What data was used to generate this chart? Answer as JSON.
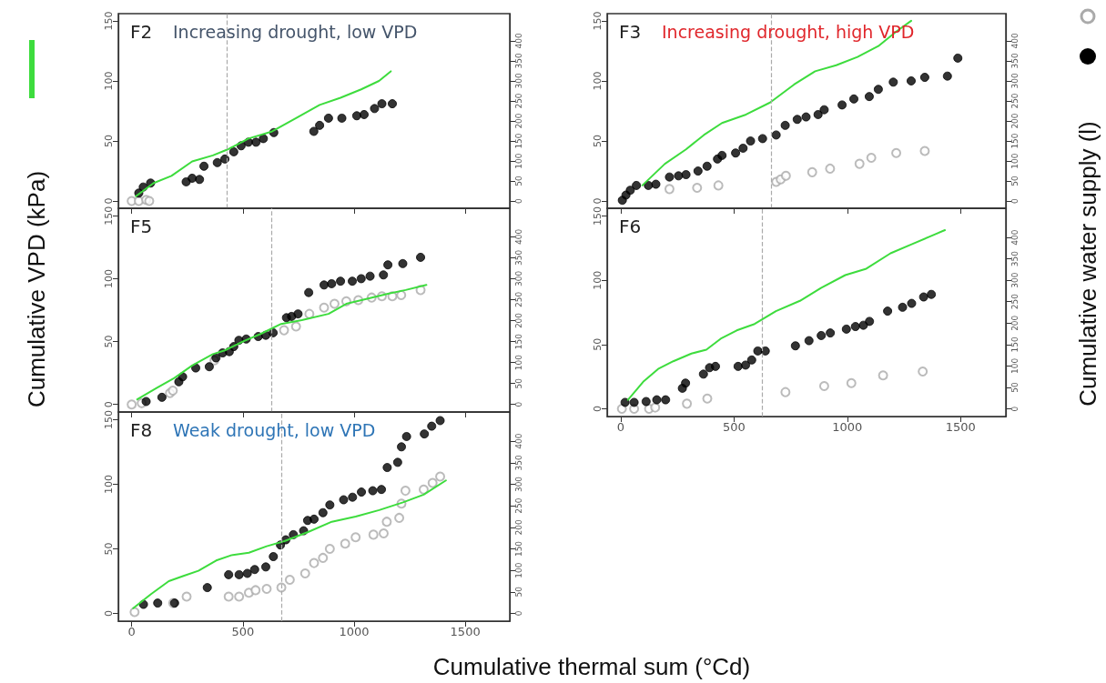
{
  "chart_data": [
    {
      "type": "scatter",
      "title": "F2",
      "subtitle": "Increasing drought, low VPD",
      "xlim": [
        -60,
        1700
      ],
      "xticks": [
        0,
        500,
        1000,
        1500
      ],
      "ylim": [
        -6,
        156
      ],
      "yticks": [
        0,
        50,
        100,
        150
      ],
      "y2lim": [
        -18,
        468
      ],
      "y2ticks": [
        0,
        50,
        100,
        150,
        200,
        250,
        300,
        350,
        400
      ],
      "tick_labels": "y",
      "ref_lines": [
        {
          "axis": "x",
          "value": 430,
          "color": "#aaaaaa",
          "line_style": "dashed"
        }
      ],
      "series": [
        {
          "type": "line",
          "color": "#3ddc3d",
          "x": [
            19,
            99,
            179,
            272,
            365,
            432,
            525,
            632,
            739,
            845,
            939,
            1032,
            1112,
            1165
          ],
          "values": [
            4,
            15,
            21,
            33,
            38,
            43,
            52,
            58,
            69,
            80,
            86,
            93,
            100,
            108
          ]
        },
        {
          "type": "scatter",
          "axis": "y2",
          "marker": "circle",
          "color": "#000000",
          "x": [
            32,
            52,
            85,
            245,
            272,
            305,
            325,
            385,
            419,
            459,
            492,
            525,
            559,
            592,
            639,
            819,
            845,
            885,
            945,
            1012,
            1045,
            1092,
            1125,
            1172
          ],
          "values": [
            20,
            35,
            45,
            48,
            57,
            54,
            87,
            96,
            105,
            123,
            138,
            147,
            147,
            156,
            171,
            174,
            189,
            207,
            207,
            213,
            216,
            231,
            243,
            243
          ]
        },
        {
          "type": "scatter",
          "axis": "y2",
          "marker": "circle-open",
          "color": "#aaaaaa",
          "x": [
            0,
            32,
            65,
            79
          ],
          "values": [
            0,
            0,
            3,
            0
          ]
        }
      ]
    },
    {
      "type": "scatter",
      "title": "F3",
      "subtitle": "Increasing drought, high VPD",
      "y2label": "Cumulative water supply (l)",
      "xlim": [
        -60,
        1700
      ],
      "xticks": [
        0,
        500,
        1000,
        1500
      ],
      "ylim": [
        -6,
        156
      ],
      "yticks": [
        0,
        50,
        100,
        150
      ],
      "y2lim": [
        -18,
        468
      ],
      "y2ticks": [
        0,
        50,
        100,
        150,
        200,
        250,
        300,
        350,
        400
      ],
      "tick_labels": "y",
      "ref_lines": [
        {
          "axis": "x",
          "value": 665,
          "color": "#aaaaaa",
          "line_style": "dashed"
        }
      ],
      "series": [
        {
          "type": "line",
          "color": "#3ddc3d",
          "x": [
            95,
            195,
            288,
            367,
            447,
            553,
            659,
            765,
            858,
            951,
            1045,
            1137,
            1216,
            1282
          ],
          "values": [
            13,
            31,
            43,
            55,
            65,
            72,
            82,
            97,
            108,
            113,
            120,
            129,
            141,
            150
          ]
        },
        {
          "type": "scatter",
          "axis": "y2",
          "marker": "circle",
          "color": "#000000",
          "x": [
            7,
            23,
            42,
            69,
            122,
            155,
            215,
            255,
            288,
            341,
            381,
            427,
            447,
            507,
            540,
            573,
            626,
            686,
            726,
            779,
            818,
            871,
            898,
            977,
            1029,
            1097,
            1137,
            1203,
            1282,
            1342,
            1442,
            1488
          ],
          "values": [
            2,
            15,
            27,
            39,
            39,
            42,
            60,
            63,
            66,
            75,
            87,
            105,
            114,
            120,
            132,
            150,
            156,
            165,
            189,
            204,
            210,
            216,
            228,
            240,
            255,
            261,
            279,
            297,
            300,
            309,
            312,
            357
          ]
        },
        {
          "type": "scatter",
          "axis": "y2",
          "marker": "circle-open",
          "color": "#aaaaaa",
          "x": [
            215,
            337,
            431,
            686,
            706,
            729,
            845,
            924,
            1054,
            1106,
            1216,
            1342
          ],
          "values": [
            30,
            33,
            39,
            48,
            54,
            63,
            72,
            81,
            93,
            108,
            120,
            125
          ]
        }
      ]
    },
    {
      "type": "scatter",
      "title": "F5",
      "ylabel": "Cumulative VPD (kPa)",
      "xlim": [
        -60,
        1700
      ],
      "xticks": [
        0,
        500,
        1000,
        1500
      ],
      "ylim": [
        -6,
        156
      ],
      "yticks": [
        0,
        50,
        100,
        150
      ],
      "y2lim": [
        -18,
        468
      ],
      "y2ticks": [
        0,
        50,
        100,
        150,
        200,
        250,
        300,
        350,
        400
      ],
      "tick_labels": "y",
      "ref_lines": [
        {
          "axis": "x",
          "value": 630,
          "color": "#aaaaaa",
          "line_style": "dashed"
        }
      ],
      "series": [
        {
          "type": "line",
          "color": "#3ddc3d",
          "x": [
            25,
            112,
            192,
            272,
            365,
            419,
            499,
            579,
            672,
            765,
            885,
            965,
            1059,
            1152,
            1232,
            1325
          ],
          "values": [
            4,
            13,
            21,
            31,
            40,
            43,
            50,
            56,
            64,
            67,
            72,
            80,
            84,
            88,
            91,
            95
          ]
        },
        {
          "type": "scatter",
          "axis": "y2",
          "marker": "circle",
          "color": "#000000",
          "x": [
            65,
            136,
            212,
            229,
            288,
            349,
            379,
            409,
            439,
            459,
            482,
            515,
            569,
            603,
            636,
            696,
            719,
            748,
            796,
            865,
            899,
            939,
            992,
            1032,
            1072,
            1132,
            1152,
            1219,
            1299
          ],
          "values": [
            7,
            17,
            54,
            66,
            87,
            90,
            111,
            123,
            126,
            138,
            153,
            156,
            162,
            165,
            171,
            207,
            210,
            216,
            267,
            285,
            288,
            294,
            294,
            300,
            306,
            309,
            333,
            336,
            351
          ]
        },
        {
          "type": "scatter",
          "axis": "y2",
          "marker": "circle-open",
          "color": "#aaaaaa",
          "x": [
            0,
            45,
            172,
            185,
            372,
            685,
            739,
            799,
            865,
            912,
            965,
            1019,
            1079,
            1125,
            1172,
            1212,
            1299
          ],
          "values": [
            0,
            3,
            27,
            33,
            105,
            177,
            186,
            216,
            231,
            240,
            246,
            249,
            255,
            258,
            258,
            261,
            273
          ]
        }
      ]
    },
    {
      "type": "scatter",
      "title": "F6",
      "xlim": [
        -60,
        1700
      ],
      "xticks": [
        0,
        500,
        1000,
        1500
      ],
      "ylim": [
        -6,
        156
      ],
      "yticks": [
        0,
        50,
        100,
        150
      ],
      "y2lim": [
        -18,
        468
      ],
      "y2ticks": [
        0,
        50,
        100,
        150,
        200,
        250,
        300,
        350,
        400
      ],
      "ref_lines": [
        {
          "axis": "x",
          "value": 625,
          "color": "#aaaaaa",
          "line_style": "dashed"
        }
      ],
      "series": [
        {
          "type": "line",
          "color": "#3ddc3d",
          "x": [
            32,
            99,
            165,
            232,
            312,
            378,
            445,
            512,
            591,
            685,
            791,
            884,
            991,
            1084,
            1191,
            1284,
            1364,
            1431
          ],
          "values": [
            7,
            21,
            31,
            37,
            43,
            46,
            55,
            61,
            66,
            76,
            84,
            94,
            104,
            109,
            121,
            128,
            134,
            139
          ]
        },
        {
          "type": "scatter",
          "axis": "y2",
          "marker": "circle",
          "color": "#000000",
          "x": [
            19,
            59,
            112,
            159,
            198,
            272,
            286,
            365,
            392,
            418,
            518,
            551,
            578,
            605,
            638,
            771,
            831,
            885,
            925,
            996,
            1036,
            1071,
            1098,
            1178,
            1244,
            1284,
            1337,
            1371
          ],
          "values": [
            15,
            15,
            17,
            21,
            21,
            48,
            60,
            81,
            96,
            99,
            99,
            102,
            114,
            135,
            135,
            147,
            159,
            171,
            177,
            186,
            192,
            195,
            204,
            228,
            237,
            246,
            261,
            267
          ]
        },
        {
          "type": "scatter",
          "axis": "y2",
          "marker": "circle-open",
          "color": "#aaaaaa",
          "x": [
            5,
            59,
            125,
            152,
            292,
            382,
            727,
            898,
            1018,
            1158,
            1333
          ],
          "values": [
            0,
            0,
            0,
            3,
            12,
            24,
            39,
            53,
            60,
            78,
            87
          ]
        }
      ]
    },
    {
      "type": "scatter",
      "title": "F8",
      "subtitle": "Weak drought, low VPD",
      "xlabel": "Cumulative thermal sum (°Cd)",
      "xlim": [
        -60,
        1700
      ],
      "xticks": [
        0,
        500,
        1000,
        1500
      ],
      "ylim": [
        -6,
        156
      ],
      "yticks": [
        0,
        50,
        100,
        150
      ],
      "y2lim": [
        -18,
        468
      ],
      "y2ticks": [
        0,
        50,
        100,
        150,
        200,
        250,
        300,
        350,
        400
      ],
      "ref_lines": [
        {
          "axis": "x",
          "value": 675,
          "color": "#aaaaaa",
          "line_style": "dashed"
        }
      ],
      "series": [
        {
          "type": "line",
          "color": "#3ddc3d",
          "x": [
            7,
            87,
            167,
            233,
            300,
            380,
            447,
            527,
            607,
            687,
            793,
            900,
            1007,
            1113,
            1220,
            1313,
            1413
          ],
          "values": [
            4,
            15,
            25,
            29,
            33,
            41,
            45,
            47,
            52,
            56,
            63,
            71,
            75,
            80,
            86,
            92,
            103
          ]
        },
        {
          "type": "scatter",
          "axis": "y2",
          "marker": "circle",
          "color": "#000000",
          "x": [
            53,
            117,
            193,
            340,
            436,
            483,
            520,
            553,
            603,
            637,
            669,
            693,
            727,
            773,
            791,
            820,
            860,
            891,
            953,
            993,
            1033,
            1084,
            1123,
            1149,
            1196,
            1213,
            1236,
            1316,
            1349,
            1387
          ],
          "values": [
            21,
            24,
            24,
            60,
            90,
            90,
            93,
            102,
            108,
            132,
            159,
            171,
            183,
            192,
            216,
            219,
            234,
            252,
            264,
            270,
            282,
            285,
            288,
            339,
            351,
            387,
            411,
            417,
            435,
            448
          ]
        },
        {
          "type": "scatter",
          "axis": "y2",
          "marker": "circle-open",
          "color": "#aaaaaa",
          "x": [
            13,
            187,
            247,
            436,
            483,
            527,
            557,
            607,
            673,
            711,
            780,
            820,
            860,
            891,
            960,
            1007,
            1087,
            1133,
            1147,
            1203,
            1213,
            1231,
            1313,
            1353,
            1387
          ],
          "values": [
            3,
            24,
            39,
            39,
            39,
            48,
            54,
            57,
            60,
            78,
            93,
            117,
            129,
            150,
            162,
            177,
            183,
            186,
            213,
            222,
            255,
            285,
            288,
            303,
            318
          ]
        }
      ]
    }
  ]
}
